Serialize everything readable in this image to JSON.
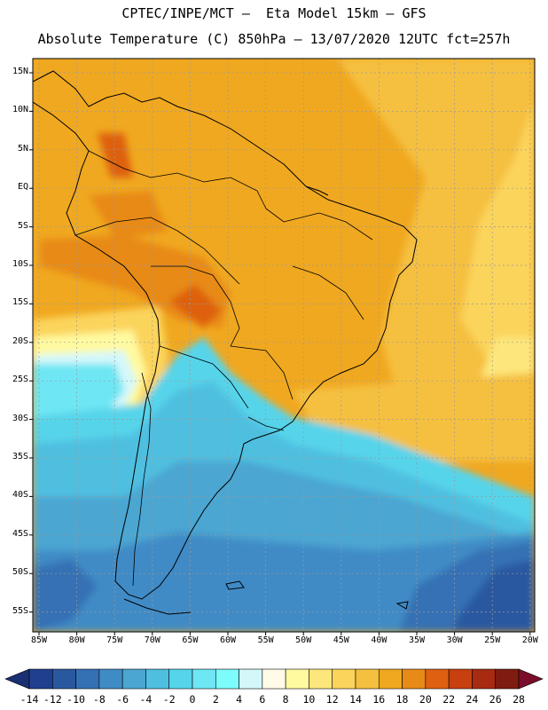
{
  "header": {
    "line1": "CPTEC/INPE/MCT –  Eta Model 15km – GFS",
    "line2": "Absolute Temperature (C) 850hPa – 13/07/2020 12UTC fct=257h"
  },
  "axes": {
    "lat_labels": [
      "15N",
      "10N",
      "5N",
      "EQ",
      "5S",
      "10S",
      "15S",
      "20S",
      "25S",
      "30S",
      "35S",
      "40S",
      "45S",
      "50S",
      "55S"
    ],
    "lon_labels": [
      "85W",
      "80W",
      "75W",
      "70W",
      "65W",
      "60W",
      "55W",
      "50W",
      "45W",
      "40W",
      "35W",
      "30W",
      "25W",
      "20W"
    ]
  },
  "colorbar": {
    "labels": [
      "-14",
      "-12",
      "-10",
      "-8",
      "-6",
      "-4",
      "-2",
      "0",
      "2",
      "4",
      "6",
      "8",
      "10",
      "12",
      "14",
      "16",
      "18",
      "20",
      "22",
      "24",
      "26",
      "28"
    ],
    "colors": [
      "#1f3f8f",
      "#2a58a0",
      "#3471b4",
      "#3f8bc6",
      "#4ba6d2",
      "#4fbfe0",
      "#56d4ea",
      "#6ee6f4",
      "#7dfcfc",
      "#d4f8fa",
      "#fffbe8",
      "#fffaa0",
      "#fde77c",
      "#fbd45c",
      "#f5c040",
      "#f0a820",
      "#e88a18",
      "#de6010",
      "#c84010",
      "#a82a10",
      "#7e1c10"
    ],
    "under_color": "#1a2f72",
    "over_color": "#7a0e2a"
  },
  "colors": {
    "land_outline": "#000000",
    "grid": "#9a9a9a"
  }
}
